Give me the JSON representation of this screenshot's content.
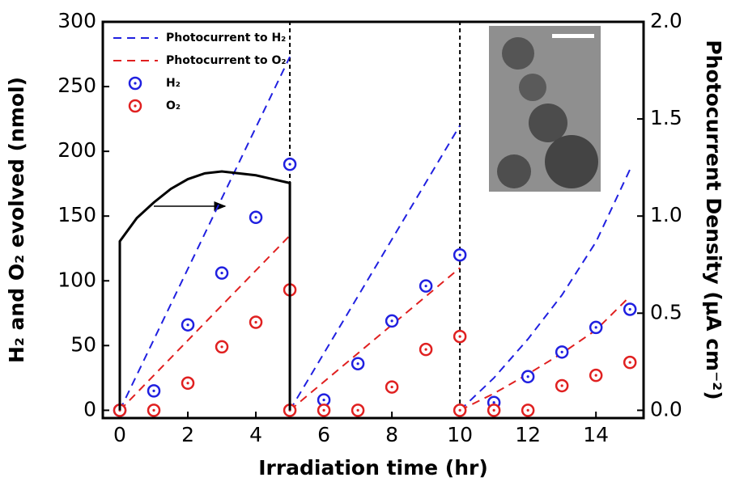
{
  "chart_data": {
    "type": "combo",
    "xlabel": "Irradiation time (hr)",
    "ylabel": "H₂ and O₂ evolved (nmol)",
    "y2label": "Photocurrent Density (μA cm⁻²)",
    "xlim": [
      -0.5,
      15.4
    ],
    "ylim": [
      -6,
      300
    ],
    "y2lim": [
      -0.04,
      2.0
    ],
    "xticks": [
      0,
      2,
      4,
      6,
      8,
      10,
      12,
      14
    ],
    "yticks": [
      0,
      50,
      100,
      150,
      200,
      250,
      300
    ],
    "y2ticks": [
      {
        "value": 0,
        "label": "0.0"
      },
      {
        "value": 0.5,
        "label": "0.5"
      },
      {
        "value": 1,
        "label": "1.0"
      },
      {
        "value": 1.5,
        "label": "1.5"
      },
      {
        "value": 2,
        "label": "2.0"
      }
    ],
    "vlines": [
      5,
      10
    ],
    "series": [
      {
        "name": "Photocurrent to H₂",
        "type": "line",
        "dashed": true,
        "color": "#2020e0",
        "x": [
          0,
          5,
          5,
          5,
          10,
          10,
          10,
          11,
          12,
          13,
          14,
          15
        ],
        "values": [
          0,
          273,
          null,
          0,
          220,
          null,
          0,
          25,
          55,
          89,
          130,
          186
        ]
      },
      {
        "name": "Photocurrent to O₂",
        "type": "line",
        "dashed": true,
        "color": "#e02020",
        "x": [
          0,
          5,
          5,
          5,
          10,
          10,
          10,
          11,
          12,
          13,
          14,
          15
        ],
        "values": [
          0,
          135,
          null,
          0,
          110,
          null,
          0,
          13,
          28,
          44,
          62,
          88
        ]
      },
      {
        "name": "H₂",
        "type": "scatter",
        "color": "#2020e0",
        "x": [
          0,
          1,
          2,
          3,
          4,
          5,
          6,
          7,
          8,
          9,
          10,
          11,
          12,
          13,
          14,
          15
        ],
        "values": [
          0,
          15,
          66,
          106,
          149,
          190,
          8,
          36,
          69,
          96,
          120,
          6,
          26,
          45,
          64,
          78
        ]
      },
      {
        "name": "O₂",
        "type": "scatter",
        "color": "#e02020",
        "x": [
          0,
          1,
          2,
          3,
          4,
          5,
          5,
          6,
          7,
          8,
          9,
          10,
          10,
          11,
          12,
          13,
          14,
          15
        ],
        "values": [
          0,
          0,
          21,
          49,
          68,
          93,
          0,
          0,
          0,
          18,
          47,
          57,
          0,
          0,
          0,
          19,
          27,
          37
        ]
      },
      {
        "type": "line",
        "dashed": false,
        "axis": "y2",
        "color": "#000000",
        "x": [
          0,
          0,
          0.5,
          1,
          1.5,
          2,
          2.5,
          3,
          3.5,
          4,
          4.5,
          5,
          5
        ],
        "values": [
          0,
          0.87,
          0.99,
          1.07,
          1.14,
          1.19,
          1.22,
          1.23,
          1.22,
          1.21,
          1.19,
          1.17,
          0
        ]
      }
    ]
  }
}
